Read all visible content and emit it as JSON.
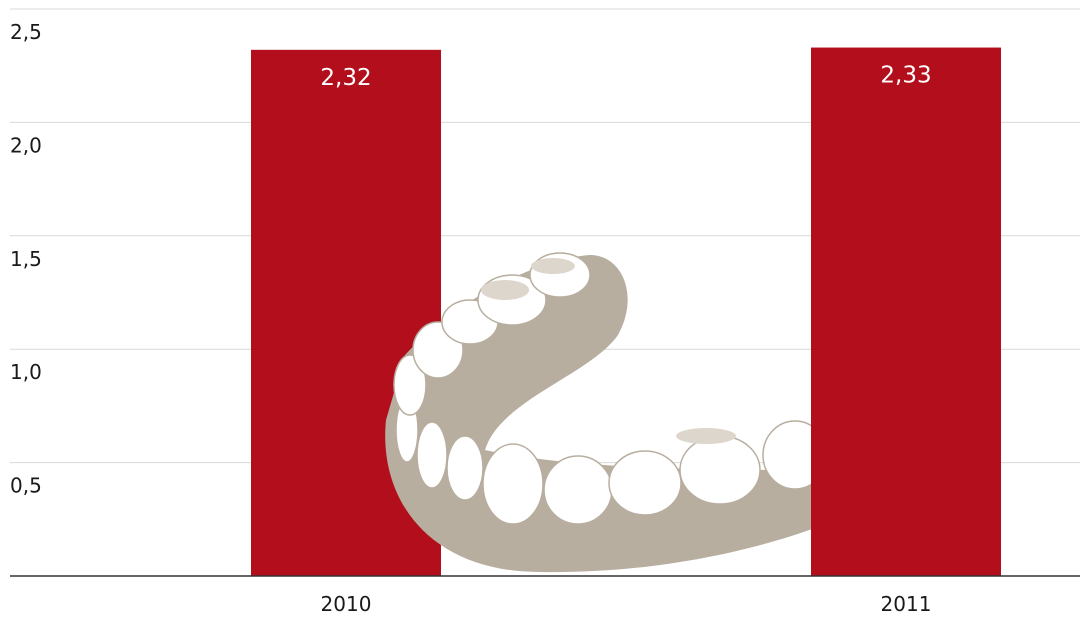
{
  "chart_data": {
    "type": "bar",
    "categories": [
      "2010",
      "2011"
    ],
    "values": [
      2.32,
      2.33
    ],
    "value_labels": [
      "2,32",
      "2,33"
    ],
    "color": "#b20e1c",
    "ylim": [
      0,
      2.5
    ],
    "yticks": [
      {
        "value": 0.5,
        "label": "0,5"
      },
      {
        "value": 1.0,
        "label": "1,0"
      },
      {
        "value": 1.5,
        "label": "1,5"
      },
      {
        "value": 2.0,
        "label": "2,0"
      },
      {
        "value": 2.5,
        "label": "2,5"
      }
    ],
    "grid": true
  }
}
